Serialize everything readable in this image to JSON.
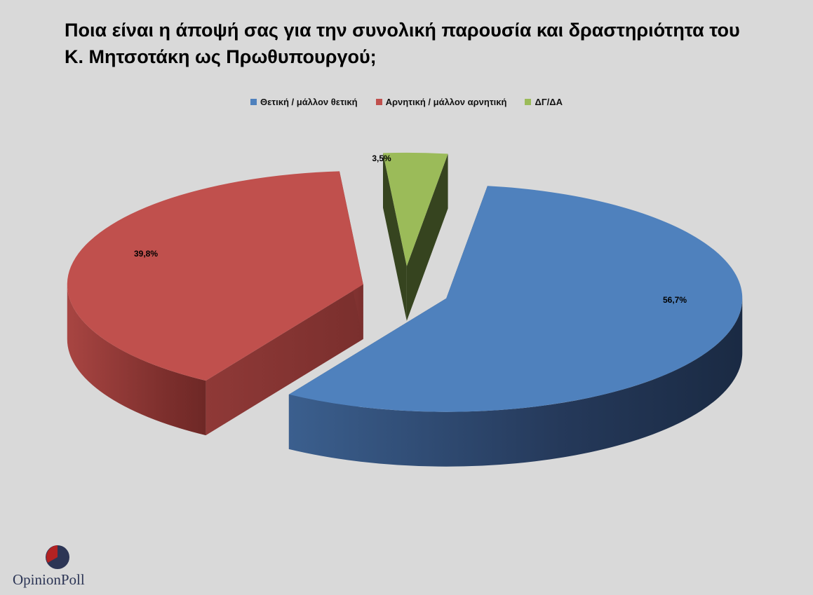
{
  "title_line1": "Ποια είναι η άποψή σας για την συνολική παρουσία και δραστηριότητα του",
  "title_line2": "Κ. Μητσοτάκη ως Πρωθυπουργού;",
  "legend": [
    {
      "label": "Θετική / μάλλον θετική",
      "color": "#4f81bd"
    },
    {
      "label": "Αρνητική / μάλλον αρνητική",
      "color": "#c0504d"
    },
    {
      "label": "ΔΓ/ΔΑ",
      "color": "#9bbb59"
    }
  ],
  "chart_data": {
    "type": "pie",
    "title": "Ποια είναι η άποψή σας για την συνολική παρουσία και δραστηριότητα του Κ. Μητσοτάκη ως Πρωθυπουργού;",
    "categories": [
      "Θετική / μάλλον θετική",
      "Αρνητική / μάλλον αρνητική",
      "ΔΓ/ΔΑ"
    ],
    "values": [
      56.7,
      39.8,
      3.5
    ],
    "data_labels": [
      "56,7%",
      "39,8%",
      "3,5%"
    ],
    "colors": [
      "#4f81bd",
      "#c0504d",
      "#9bbb59"
    ],
    "style": "3d-exploded",
    "legend_position": "top"
  },
  "logo": {
    "word1": "Opinion",
    "word2": "Poll"
  }
}
